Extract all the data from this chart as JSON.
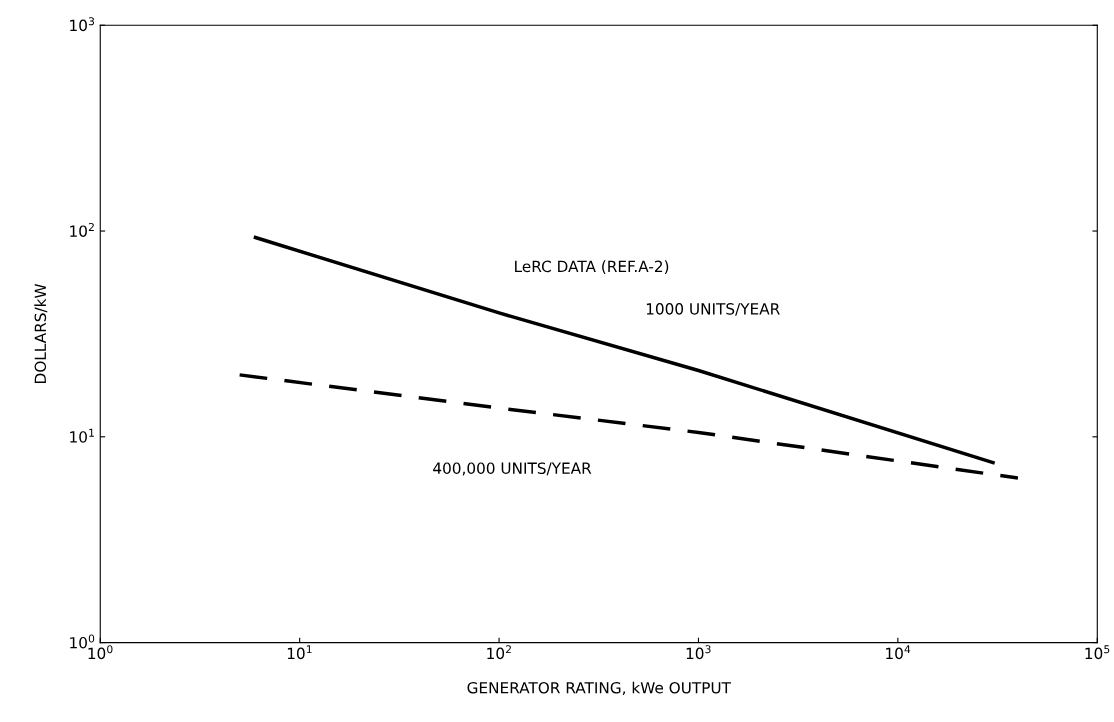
{
  "chart_data": {
    "type": "line",
    "xlabel": "GENERATOR RATING, kWe OUTPUT",
    "ylabel": "DOLLARS/kW",
    "log": "xy",
    "grid": false,
    "xlim": [
      1,
      100000
    ],
    "ylim": [
      1,
      1000
    ],
    "xticks": [
      {
        "value": 1,
        "label": "10$^{0}$"
      },
      {
        "value": 10,
        "label": "10$^{1}$"
      },
      {
        "value": 100,
        "label": "10$^{2}$"
      },
      {
        "value": 1000,
        "label": "10$^{3}$"
      },
      {
        "value": 10000,
        "label": "10$^{4}$"
      },
      {
        "value": 100000,
        "label": "10$^{5}$"
      }
    ],
    "yticks": [
      {
        "value": 1,
        "label": "10$^{0}$"
      },
      {
        "value": 10,
        "label": "10$^{1}$"
      },
      {
        "value": 100,
        "label": "10$^{2}$"
      },
      {
        "value": 1000,
        "label": "10$^{3}$"
      }
    ],
    "series": [
      {
        "name": "1000 UNITS/YEAR",
        "color": "#000000",
        "line_style": "solid",
        "x": [
          6,
          100,
          1000,
          30000
        ],
        "values": [
          93,
          40,
          21,
          7.5
        ]
      },
      {
        "name": "400,000 UNITS/YEAR",
        "color": "#000000",
        "line_style": "dashed",
        "x": [
          5,
          100,
          1000,
          40000
        ],
        "values": [
          20,
          13.8,
          10.5,
          6.3
        ]
      }
    ],
    "annotations": [
      "LeRC DATA (REF.A-2)"
    ]
  }
}
